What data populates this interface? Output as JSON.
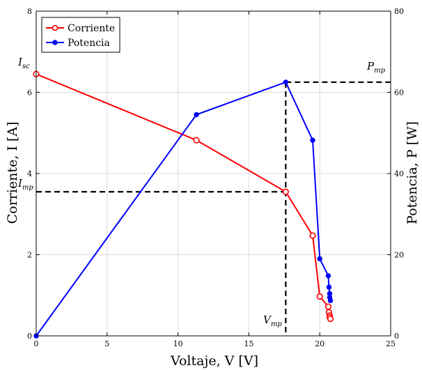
{
  "chart_data": {
    "type": "line",
    "xlabel": "Voltaje, V [V]",
    "ylabel": "Corriente, I [A]",
    "y2label": "Potencia, P [W]",
    "xlim": [
      0,
      25
    ],
    "ylim": [
      0,
      8
    ],
    "y2lim": [
      0,
      80
    ],
    "xticks": [
      "0",
      "5",
      "10",
      "15",
      "20",
      "25"
    ],
    "yticks": [
      "0",
      "2",
      "4",
      "6",
      "8"
    ],
    "y2ticks": [
      "0",
      "20",
      "40",
      "60",
      "80"
    ],
    "grid": true,
    "legend_position": "top-left",
    "series": [
      {
        "name": "Corriente",
        "axis": "left",
        "color": "#ff0000",
        "marker": "circle",
        "x": [
          0,
          11.3,
          17.6,
          19.5,
          20.0,
          20.6,
          20.65,
          20.7,
          20.7,
          20.75
        ],
        "y": [
          6.45,
          4.82,
          3.55,
          2.47,
          0.97,
          0.72,
          0.58,
          0.5,
          0.46,
          0.42
        ]
      },
      {
        "name": "Potencia",
        "axis": "right",
        "color": "#0000ff",
        "marker": "dot",
        "x": [
          0,
          11.3,
          17.6,
          19.5,
          20.0,
          20.6,
          20.65,
          20.7,
          20.7,
          20.75
        ],
        "y": [
          0,
          54.5,
          62.5,
          48.2,
          19.0,
          14.8,
          12.0,
          10.4,
          9.5,
          8.7
        ]
      }
    ],
    "annotations": {
      "vmp": 17.6,
      "imp": 3.55,
      "pmp": 62.5,
      "isc": 6.45,
      "isc_label": "I",
      "isc_sub": "sc",
      "imp_label": "I",
      "imp_sub": "mp",
      "vmp_label": "V",
      "vmp_sub": "mp",
      "pmp_label": "P",
      "pmp_sub": "mp"
    }
  }
}
